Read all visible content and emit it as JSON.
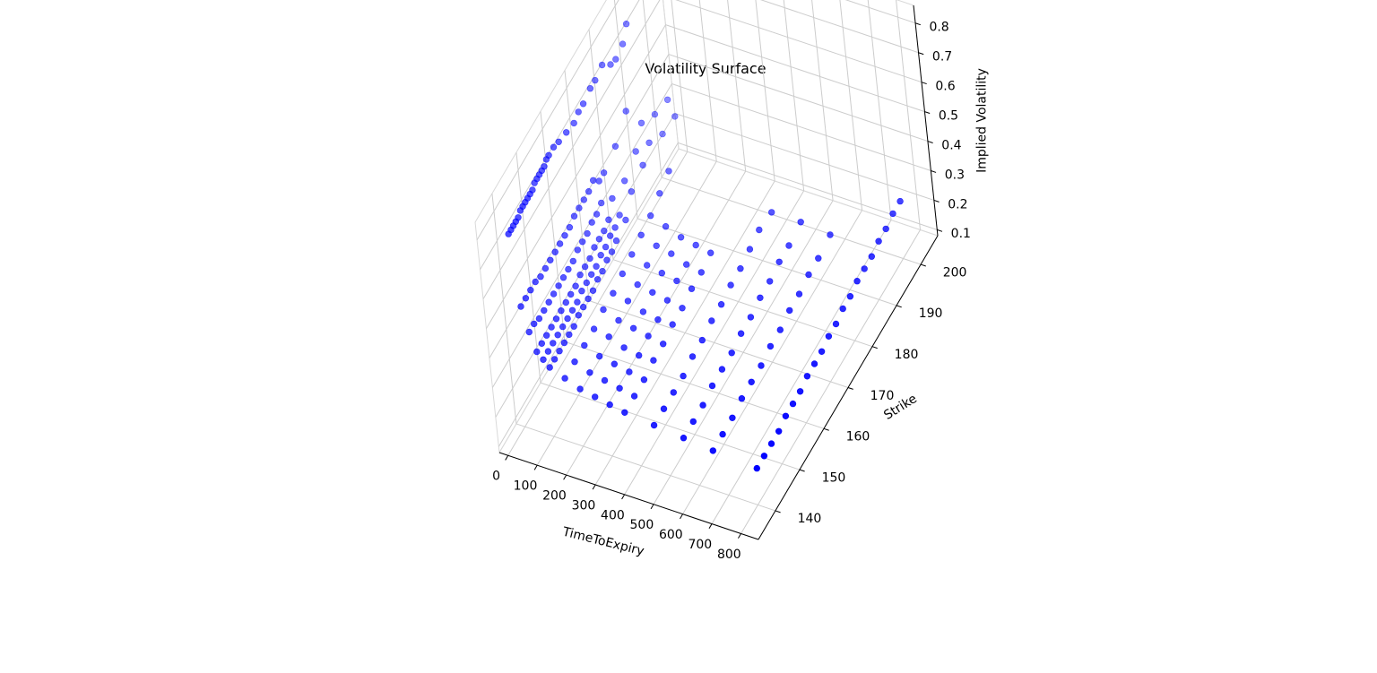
{
  "chart_data": {
    "type": "scatter",
    "projection": "3d",
    "title": "Volatility Surface",
    "xlabel": "TimeToExpiry",
    "ylabel": "Strike",
    "zlabel": "Implied Volatility",
    "xlim": [
      -30,
      860
    ],
    "ylim": [
      133,
      207
    ],
    "zlim": [
      0.08,
      0.86
    ],
    "xticks": [
      0,
      100,
      200,
      300,
      400,
      500,
      600,
      700,
      800
    ],
    "yticks": [
      140,
      150,
      160,
      170,
      180,
      190,
      200
    ],
    "zticks": [
      0.1,
      0.2,
      0.3,
      0.4,
      0.5,
      0.6,
      0.7,
      0.8
    ],
    "xtick_labels": [
      "0",
      "100",
      "200",
      "300",
      "400",
      "500",
      "600",
      "700",
      "800"
    ],
    "ytick_labels": [
      "140",
      "150",
      "160",
      "170",
      "180",
      "190",
      "200"
    ],
    "ztick_labels": [
      "0.1",
      "0.2",
      "0.3",
      "0.4",
      "0.5",
      "0.6",
      "0.7",
      "0.8"
    ],
    "grid": true,
    "marker_color": "#0000ff",
    "points": [
      [
        3,
        141,
        0.72
      ],
      [
        3,
        142,
        0.72
      ],
      [
        3,
        143,
        0.72
      ],
      [
        3,
        144,
        0.72
      ],
      [
        3,
        145,
        0.72
      ],
      [
        3,
        146,
        0.73
      ],
      [
        3,
        147,
        0.73
      ],
      [
        3,
        148,
        0.73
      ],
      [
        3,
        149,
        0.73
      ],
      [
        3,
        150,
        0.73
      ],
      [
        3,
        151,
        0.73
      ],
      [
        3,
        152,
        0.74
      ],
      [
        3,
        153,
        0.74
      ],
      [
        3,
        154,
        0.74
      ],
      [
        3,
        155,
        0.74
      ],
      [
        3,
        156,
        0.74
      ],
      [
        3,
        157,
        0.75
      ],
      [
        3,
        158,
        0.75
      ],
      [
        3,
        160,
        0.75
      ],
      [
        3,
        162,
        0.74
      ],
      [
        3,
        165,
        0.73
      ],
      [
        3,
        168,
        0.72
      ],
      [
        3,
        170,
        0.73
      ],
      [
        3,
        172,
        0.73
      ],
      [
        3,
        175,
        0.74
      ],
      [
        3,
        177,
        0.74
      ],
      [
        3,
        180,
        0.75
      ],
      [
        3,
        183,
        0.71
      ],
      [
        3,
        185,
        0.7
      ],
      [
        3,
        188,
        0.71
      ],
      [
        3,
        190,
        0.75
      ],
      [
        3,
        195,
        0.82
      ],
      [
        3,
        196,
        0.82
      ],
      [
        3,
        197,
        0.83
      ],
      [
        3,
        198,
        0.83
      ],
      [
        3,
        199,
        0.84
      ],
      [
        3,
        200,
        0.85
      ],
      [
        3,
        201,
        0.86
      ],
      [
        20,
        141,
        0.48
      ],
      [
        20,
        143,
        0.48
      ],
      [
        20,
        145,
        0.48
      ],
      [
        20,
        147,
        0.48
      ],
      [
        20,
        149,
        0.47
      ],
      [
        20,
        151,
        0.47
      ],
      [
        20,
        153,
        0.47
      ],
      [
        20,
        155,
        0.47
      ],
      [
        20,
        157,
        0.47
      ],
      [
        20,
        159,
        0.47
      ],
      [
        20,
        161,
        0.47
      ],
      [
        20,
        163,
        0.48
      ],
      [
        20,
        165,
        0.48
      ],
      [
        20,
        167,
        0.48
      ],
      [
        20,
        169,
        0.48
      ],
      [
        20,
        171,
        0.49
      ],
      [
        20,
        173,
        0.46
      ],
      [
        20,
        175,
        0.46
      ],
      [
        20,
        180,
        0.48
      ],
      [
        20,
        185,
        0.53
      ],
      [
        20,
        190,
        0.42
      ],
      [
        20,
        195,
        0.38
      ],
      [
        20,
        200,
        0.36
      ],
      [
        40,
        141,
        0.4
      ],
      [
        40,
        143,
        0.4
      ],
      [
        40,
        145,
        0.39
      ],
      [
        40,
        147,
        0.39
      ],
      [
        40,
        149,
        0.39
      ],
      [
        40,
        151,
        0.39
      ],
      [
        40,
        153,
        0.39
      ],
      [
        40,
        155,
        0.39
      ],
      [
        40,
        157,
        0.39
      ],
      [
        40,
        159,
        0.39
      ],
      [
        40,
        161,
        0.4
      ],
      [
        40,
        163,
        0.4
      ],
      [
        40,
        165,
        0.4
      ],
      [
        40,
        167,
        0.41
      ],
      [
        40,
        169,
        0.41
      ],
      [
        40,
        171,
        0.42
      ],
      [
        40,
        175,
        0.38
      ],
      [
        40,
        180,
        0.37
      ],
      [
        40,
        185,
        0.4
      ],
      [
        40,
        190,
        0.36
      ],
      [
        40,
        195,
        0.32
      ],
      [
        40,
        200,
        0.31
      ],
      [
        60,
        141,
        0.34
      ],
      [
        60,
        143,
        0.34
      ],
      [
        60,
        145,
        0.34
      ],
      [
        60,
        147,
        0.34
      ],
      [
        60,
        149,
        0.34
      ],
      [
        60,
        151,
        0.34
      ],
      [
        60,
        153,
        0.34
      ],
      [
        60,
        155,
        0.34
      ],
      [
        60,
        157,
        0.34
      ],
      [
        60,
        159,
        0.35
      ],
      [
        60,
        161,
        0.35
      ],
      [
        60,
        163,
        0.35
      ],
      [
        60,
        165,
        0.36
      ],
      [
        60,
        167,
        0.36
      ],
      [
        60,
        169,
        0.36
      ],
      [
        60,
        171,
        0.37
      ],
      [
        60,
        175,
        0.33
      ],
      [
        60,
        180,
        0.34
      ],
      [
        60,
        185,
        0.36
      ],
      [
        80,
        141,
        0.32
      ],
      [
        80,
        143,
        0.32
      ],
      [
        80,
        145,
        0.32
      ],
      [
        80,
        147,
        0.32
      ],
      [
        80,
        149,
        0.32
      ],
      [
        80,
        151,
        0.32
      ],
      [
        80,
        153,
        0.32
      ],
      [
        80,
        155,
        0.32
      ],
      [
        80,
        157,
        0.33
      ],
      [
        80,
        159,
        0.33
      ],
      [
        80,
        161,
        0.33
      ],
      [
        80,
        163,
        0.33
      ],
      [
        80,
        165,
        0.34
      ],
      [
        80,
        167,
        0.34
      ],
      [
        80,
        169,
        0.35
      ],
      [
        80,
        171,
        0.35
      ],
      [
        80,
        175,
        0.32
      ],
      [
        100,
        141,
        0.3
      ],
      [
        100,
        143,
        0.3
      ],
      [
        100,
        145,
        0.3
      ],
      [
        100,
        147,
        0.3
      ],
      [
        100,
        149,
        0.3
      ],
      [
        100,
        151,
        0.3
      ],
      [
        100,
        153,
        0.31
      ],
      [
        100,
        155,
        0.31
      ],
      [
        100,
        157,
        0.31
      ],
      [
        100,
        159,
        0.31
      ],
      [
        100,
        161,
        0.32
      ],
      [
        100,
        163,
        0.32
      ],
      [
        100,
        165,
        0.33
      ],
      [
        100,
        167,
        0.33
      ],
      [
        100,
        169,
        0.34
      ],
      [
        150,
        141,
        0.28
      ],
      [
        150,
        145,
        0.28
      ],
      [
        150,
        149,
        0.28
      ],
      [
        150,
        153,
        0.28
      ],
      [
        150,
        157,
        0.29
      ],
      [
        150,
        161,
        0.29
      ],
      [
        150,
        165,
        0.3
      ],
      [
        150,
        169,
        0.31
      ],
      [
        150,
        173,
        0.32
      ],
      [
        150,
        177,
        0.33
      ],
      [
        150,
        181,
        0.35
      ],
      [
        150,
        185,
        0.37
      ],
      [
        200,
        141,
        0.26
      ],
      [
        200,
        145,
        0.26
      ],
      [
        200,
        149,
        0.26
      ],
      [
        200,
        153,
        0.27
      ],
      [
        200,
        157,
        0.27
      ],
      [
        200,
        161,
        0.28
      ],
      [
        200,
        165,
        0.28
      ],
      [
        200,
        169,
        0.29
      ],
      [
        200,
        173,
        0.3
      ],
      [
        200,
        177,
        0.31
      ],
      [
        250,
        141,
        0.25
      ],
      [
        250,
        145,
        0.25
      ],
      [
        250,
        149,
        0.25
      ],
      [
        250,
        153,
        0.25
      ],
      [
        250,
        157,
        0.26
      ],
      [
        250,
        161,
        0.26
      ],
      [
        250,
        165,
        0.27
      ],
      [
        250,
        169,
        0.28
      ],
      [
        250,
        173,
        0.29
      ],
      [
        250,
        177,
        0.29
      ],
      [
        300,
        141,
        0.24
      ],
      [
        300,
        145,
        0.24
      ],
      [
        300,
        149,
        0.24
      ],
      [
        300,
        153,
        0.24
      ],
      [
        300,
        157,
        0.25
      ],
      [
        300,
        161,
        0.25
      ],
      [
        300,
        165,
        0.26
      ],
      [
        300,
        169,
        0.27
      ],
      [
        300,
        173,
        0.27
      ],
      [
        300,
        177,
        0.28
      ],
      [
        350,
        141,
        0.23
      ],
      [
        350,
        145,
        0.23
      ],
      [
        350,
        149,
        0.23
      ],
      [
        350,
        153,
        0.24
      ],
      [
        350,
        157,
        0.24
      ],
      [
        350,
        161,
        0.25
      ],
      [
        350,
        165,
        0.25
      ],
      [
        350,
        169,
        0.26
      ],
      [
        350,
        173,
        0.26
      ],
      [
        350,
        177,
        0.27
      ],
      [
        450,
        141,
        0.22
      ],
      [
        450,
        145,
        0.22
      ],
      [
        450,
        149,
        0.22
      ],
      [
        450,
        153,
        0.22
      ],
      [
        450,
        157,
        0.23
      ],
      [
        450,
        161,
        0.23
      ],
      [
        450,
        165,
        0.24
      ],
      [
        450,
        169,
        0.24
      ],
      [
        450,
        173,
        0.25
      ],
      [
        450,
        177,
        0.25
      ],
      [
        450,
        181,
        0.26
      ],
      [
        450,
        185,
        0.27
      ],
      [
        450,
        190,
        0.26
      ],
      [
        550,
        141,
        0.21
      ],
      [
        550,
        145,
        0.21
      ],
      [
        550,
        149,
        0.21
      ],
      [
        550,
        153,
        0.22
      ],
      [
        550,
        157,
        0.22
      ],
      [
        550,
        161,
        0.22
      ],
      [
        550,
        165,
        0.23
      ],
      [
        550,
        169,
        0.23
      ],
      [
        550,
        173,
        0.24
      ],
      [
        550,
        177,
        0.24
      ],
      [
        550,
        181,
        0.25
      ],
      [
        550,
        185,
        0.25
      ],
      [
        550,
        190,
        0.26
      ],
      [
        650,
        141,
        0.2
      ],
      [
        650,
        145,
        0.2
      ],
      [
        650,
        149,
        0.2
      ],
      [
        650,
        153,
        0.21
      ],
      [
        650,
        157,
        0.21
      ],
      [
        650,
        161,
        0.21
      ],
      [
        650,
        165,
        0.22
      ],
      [
        650,
        169,
        0.22
      ],
      [
        650,
        173,
        0.23
      ],
      [
        650,
        177,
        0.23
      ],
      [
        650,
        181,
        0.24
      ],
      [
        650,
        185,
        0.24
      ],
      [
        650,
        190,
        0.25
      ],
      [
        800,
        141,
        0.19
      ],
      [
        800,
        144,
        0.19
      ],
      [
        800,
        147,
        0.19
      ],
      [
        800,
        150,
        0.19
      ],
      [
        800,
        153,
        0.2
      ],
      [
        800,
        156,
        0.2
      ],
      [
        800,
        159,
        0.2
      ],
      [
        800,
        162,
        0.21
      ],
      [
        800,
        165,
        0.21
      ],
      [
        800,
        168,
        0.21
      ],
      [
        800,
        171,
        0.22
      ],
      [
        800,
        174,
        0.22
      ],
      [
        800,
        177,
        0.23
      ],
      [
        800,
        180,
        0.23
      ],
      [
        800,
        183,
        0.24
      ],
      [
        800,
        186,
        0.24
      ],
      [
        800,
        189,
        0.24
      ],
      [
        800,
        192,
        0.25
      ],
      [
        800,
        195,
        0.25
      ],
      [
        800,
        198,
        0.26
      ],
      [
        800,
        201,
        0.26
      ]
    ]
  }
}
